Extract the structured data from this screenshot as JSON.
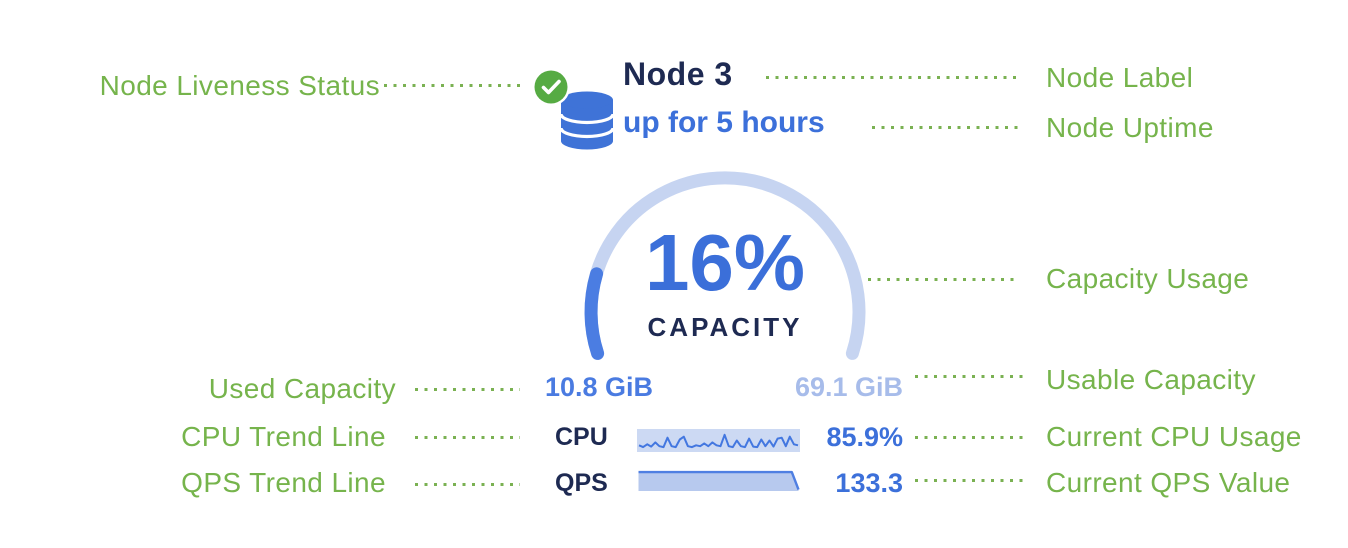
{
  "ann": {
    "node_liveness_status": "Node Liveness Status",
    "node_label": "Node Label",
    "node_uptime": "Node Uptime",
    "capacity_usage": "Capacity Usage",
    "used_capacity": "Used Capacity",
    "usable_capacity": "Usable Capacity",
    "cpu_trend_line": "CPU Trend Line",
    "current_cpu_usage": "Current CPU Usage",
    "qps_trend_line": "QPS Trend Line",
    "current_qps_value": "Current QPS Value"
  },
  "node": {
    "liveness_icon": "check-circle-icon",
    "db_icon": "database-icon",
    "label": "Node 3",
    "uptime": "up for 5 hours",
    "capacity_gauge": {
      "percent": 16,
      "percent_label": "16%",
      "caption": "CAPACITY",
      "used_label": "10.8 GiB",
      "usable_label": "69.1 GiB",
      "arc_sweep_deg": 216
    },
    "cpu": {
      "label": "CPU",
      "value": "85.9%",
      "trend": [
        0.25,
        0.15,
        0.3,
        0.18,
        0.4,
        0.2,
        0.15,
        0.65,
        0.2,
        0.15,
        0.55,
        0.7,
        0.2,
        0.15,
        0.25,
        0.2,
        0.35,
        0.2,
        0.4,
        0.25,
        0.2,
        0.8,
        0.2,
        0.15,
        0.5,
        0.2,
        0.15,
        0.6,
        0.18,
        0.15,
        0.55,
        0.2,
        0.5,
        0.18,
        0.6,
        0.65,
        0.2,
        0.7,
        0.3,
        0.25
      ]
    },
    "qps": {
      "label": "QPS",
      "value": "133.3",
      "trend": [
        0.97,
        0.97,
        0.97,
        0.97,
        0.97,
        0.97,
        0.97,
        0.97,
        0.97,
        0.97,
        0.97,
        0.97,
        0.97,
        0.97,
        0.97,
        0.97,
        0.97,
        0.97,
        0.97,
        0.97,
        0.97,
        0.97,
        0.97,
        0.97,
        0.05
      ]
    }
  },
  "chart_data": {
    "type": "gauge",
    "title": "CAPACITY",
    "value_percent": 16,
    "used_capacity": "10.8 GiB",
    "usable_capacity": "69.1 GiB",
    "related_metrics": [
      {
        "name": "CPU",
        "current": "85.9%"
      },
      {
        "name": "QPS",
        "current": "133.3"
      }
    ]
  },
  "colors": {
    "annotation_green": "#76b44c",
    "leader_green": "#7ab152",
    "navy_text": "#1e2a52",
    "blue_text": "#3c70da",
    "gauge_track": "#c6d4f1",
    "gauge_fill": "#4b7de2",
    "usable_light_blue": "#a7bcea",
    "spark_background": "#ccd9f3",
    "qps_area_fill": "#b7c9ee",
    "check_green": "#56ab43",
    "database_blue": "#3f73d7"
  }
}
